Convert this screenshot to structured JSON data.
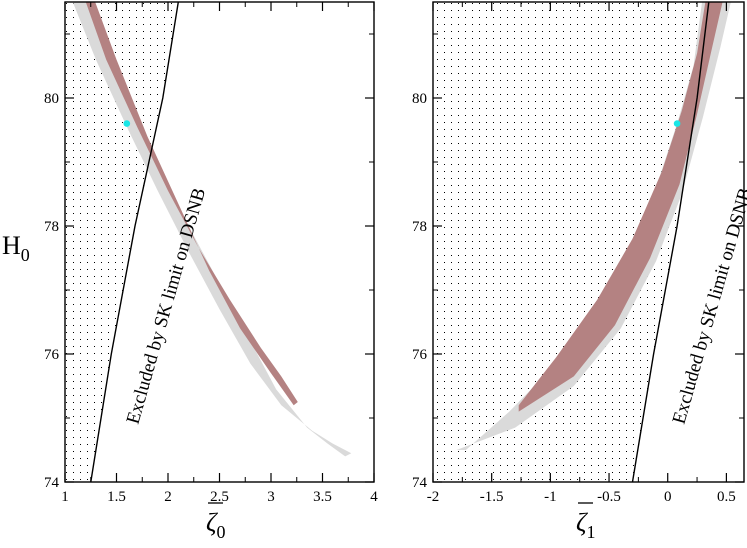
{
  "chart_data": [
    {
      "type": "area",
      "panel": "left",
      "xlabel": "ζ̄₀",
      "xlabel_main": "ζ",
      "xlabel_sub": "0",
      "ylabel": "H₀",
      "ylabel_main": "H",
      "ylabel_sub": "0",
      "xlim": [
        1,
        4
      ],
      "ylim": [
        74,
        81.5
      ],
      "xticks": [
        1,
        1.5,
        2,
        2.5,
        3,
        3.5,
        4
      ],
      "xtick_labels": [
        "1",
        "1.5",
        "2",
        "2.5",
        "3",
        "3.5",
        "4"
      ],
      "yticks": [
        74,
        76,
        78,
        80
      ],
      "ytick_labels": [
        "74",
        "76",
        "78",
        "80"
      ],
      "best_fit": {
        "x": 1.6,
        "y": 79.6
      },
      "region_outer": {
        "name": "outer confidence region",
        "upper": [
          [
            1.05,
            81.6
          ],
          [
            1.3,
            80.6
          ],
          [
            1.6,
            79.55
          ],
          [
            1.9,
            78.55
          ],
          [
            2.2,
            77.6
          ],
          [
            2.5,
            76.7
          ],
          [
            2.8,
            75.85
          ],
          [
            3.1,
            75.2
          ],
          [
            3.4,
            74.8
          ],
          [
            3.6,
            74.6
          ],
          [
            3.78,
            74.45
          ]
        ],
        "lower": [
          [
            1.2,
            81.6
          ],
          [
            1.45,
            80.6
          ],
          [
            1.75,
            79.5
          ],
          [
            2.05,
            78.45
          ],
          [
            2.4,
            77.4
          ],
          [
            2.75,
            76.35
          ],
          [
            3.05,
            75.45
          ],
          [
            3.35,
            74.85
          ],
          [
            3.55,
            74.6
          ],
          [
            3.72,
            74.4
          ]
        ]
      },
      "region_inner": {
        "name": "inner confidence region",
        "upper": [
          [
            1.18,
            81.6
          ],
          [
            1.4,
            80.6
          ],
          [
            1.7,
            79.55
          ],
          [
            2.0,
            78.55
          ],
          [
            2.3,
            77.65
          ],
          [
            2.6,
            76.85
          ],
          [
            2.9,
            76.1
          ],
          [
            3.1,
            75.65
          ],
          [
            3.26,
            75.25
          ]
        ],
        "lower": [
          [
            1.27,
            81.6
          ],
          [
            1.5,
            80.6
          ],
          [
            1.8,
            79.4
          ],
          [
            2.1,
            78.35
          ],
          [
            2.4,
            77.3
          ],
          [
            2.7,
            76.4
          ],
          [
            3.0,
            75.7
          ],
          [
            3.22,
            75.2
          ]
        ]
      },
      "exclusion_line": [
        [
          1.25,
          74
        ],
        [
          1.45,
          76
        ],
        [
          1.68,
          78
        ],
        [
          1.95,
          80
        ],
        [
          2.1,
          81.5
        ]
      ],
      "annotation": "Excluded by SK limit on DSNB"
    },
    {
      "type": "area",
      "panel": "right",
      "xlabel": "ζ̄₁",
      "xlabel_main": "ζ",
      "xlabel_sub": "1",
      "xlim": [
        -2,
        0.65
      ],
      "ylim": [
        74,
        81.5
      ],
      "xticks": [
        -2,
        -1.5,
        -1,
        -0.5,
        0,
        0.5
      ],
      "xtick_labels": [
        "-2",
        "-1.5",
        "-1",
        "-0.5",
        "0",
        "0.5"
      ],
      "yticks": [
        74,
        76,
        78,
        80
      ],
      "ytick_labels": [
        "74",
        "76",
        "78",
        "80"
      ],
      "best_fit": {
        "x": 0.08,
        "y": 79.6
      },
      "region_outer": {
        "name": "outer confidence region",
        "upper": [
          [
            -1.72,
            74.5
          ],
          [
            -1.35,
            75.1
          ],
          [
            -0.95,
            75.85
          ],
          [
            -0.6,
            76.75
          ],
          [
            -0.3,
            77.75
          ],
          [
            -0.1,
            78.6
          ],
          [
            0.08,
            79.6
          ],
          [
            0.22,
            80.5
          ],
          [
            0.3,
            81.6
          ]
        ],
        "lower": [
          [
            -1.8,
            74.5
          ],
          [
            -1.3,
            74.85
          ],
          [
            -0.8,
            75.5
          ],
          [
            -0.4,
            76.4
          ],
          [
            -0.1,
            77.45
          ],
          [
            0.12,
            78.5
          ],
          [
            0.3,
            79.7
          ],
          [
            0.45,
            80.8
          ],
          [
            0.55,
            81.6
          ]
        ]
      },
      "region_inner": {
        "name": "inner confidence region",
        "upper": [
          [
            -1.27,
            75.2
          ],
          [
            -0.95,
            75.95
          ],
          [
            -0.6,
            76.85
          ],
          [
            -0.3,
            77.8
          ],
          [
            -0.05,
            78.85
          ],
          [
            0.12,
            79.8
          ],
          [
            0.25,
            80.7
          ],
          [
            0.33,
            81.6
          ]
        ],
        "lower": [
          [
            -1.27,
            75.1
          ],
          [
            -0.8,
            75.65
          ],
          [
            -0.45,
            76.45
          ],
          [
            -0.15,
            77.5
          ],
          [
            0.1,
            78.65
          ],
          [
            0.25,
            79.75
          ],
          [
            0.38,
            80.8
          ],
          [
            0.48,
            81.6
          ]
        ]
      },
      "exclusion_line": [
        [
          -0.3,
          74
        ],
        [
          -0.12,
          76
        ],
        [
          0.08,
          78
        ],
        [
          0.25,
          80
        ],
        [
          0.35,
          81.5
        ]
      ],
      "annotation": "Excluded by SK limit on DSNB"
    }
  ],
  "colors": {
    "outer_region": "#dadada",
    "inner_region": "#b48282",
    "best_fit": "#19e6e6",
    "axis": "#000000",
    "stipple": "#000000"
  }
}
